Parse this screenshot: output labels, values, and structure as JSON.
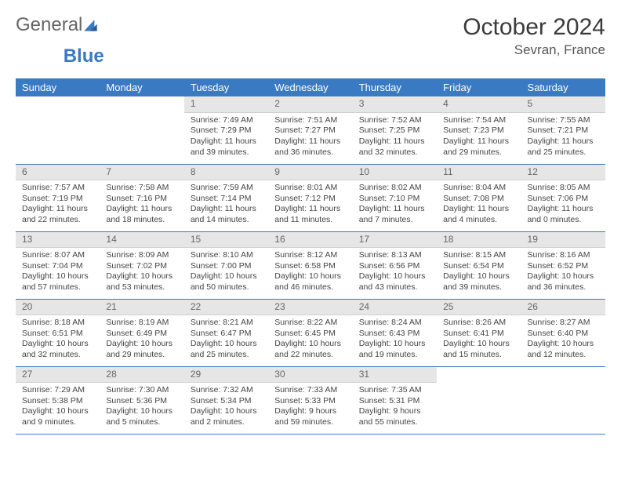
{
  "logo": {
    "text1": "General",
    "text2": "Blue",
    "accent_color": "#3a7ac2"
  },
  "header": {
    "title": "October 2024",
    "location": "Sevran, France"
  },
  "colors": {
    "header_bg": "#3a7ac2",
    "header_text": "#ffffff",
    "daynum_bg": "#e6e6e6",
    "daynum_text": "#666666",
    "cell_border": "#3a7ac2",
    "body_text": "#444444"
  },
  "weekdays": [
    "Sunday",
    "Monday",
    "Tuesday",
    "Wednesday",
    "Thursday",
    "Friday",
    "Saturday"
  ],
  "weeks": [
    [
      {
        "empty": true
      },
      {
        "empty": true
      },
      {
        "day": "1",
        "sunrise": "7:49 AM",
        "sunset": "7:29 PM",
        "daylight_h": 11,
        "daylight_m": 39
      },
      {
        "day": "2",
        "sunrise": "7:51 AM",
        "sunset": "7:27 PM",
        "daylight_h": 11,
        "daylight_m": 36
      },
      {
        "day": "3",
        "sunrise": "7:52 AM",
        "sunset": "7:25 PM",
        "daylight_h": 11,
        "daylight_m": 32
      },
      {
        "day": "4",
        "sunrise": "7:54 AM",
        "sunset": "7:23 PM",
        "daylight_h": 11,
        "daylight_m": 29
      },
      {
        "day": "5",
        "sunrise": "7:55 AM",
        "sunset": "7:21 PM",
        "daylight_h": 11,
        "daylight_m": 25
      }
    ],
    [
      {
        "day": "6",
        "sunrise": "7:57 AM",
        "sunset": "7:19 PM",
        "daylight_h": 11,
        "daylight_m": 22
      },
      {
        "day": "7",
        "sunrise": "7:58 AM",
        "sunset": "7:16 PM",
        "daylight_h": 11,
        "daylight_m": 18
      },
      {
        "day": "8",
        "sunrise": "7:59 AM",
        "sunset": "7:14 PM",
        "daylight_h": 11,
        "daylight_m": 14
      },
      {
        "day": "9",
        "sunrise": "8:01 AM",
        "sunset": "7:12 PM",
        "daylight_h": 11,
        "daylight_m": 11
      },
      {
        "day": "10",
        "sunrise": "8:02 AM",
        "sunset": "7:10 PM",
        "daylight_h": 11,
        "daylight_m": 7
      },
      {
        "day": "11",
        "sunrise": "8:04 AM",
        "sunset": "7:08 PM",
        "daylight_h": 11,
        "daylight_m": 4
      },
      {
        "day": "12",
        "sunrise": "8:05 AM",
        "sunset": "7:06 PM",
        "daylight_h": 11,
        "daylight_m": 0
      }
    ],
    [
      {
        "day": "13",
        "sunrise": "8:07 AM",
        "sunset": "7:04 PM",
        "daylight_h": 10,
        "daylight_m": 57
      },
      {
        "day": "14",
        "sunrise": "8:09 AM",
        "sunset": "7:02 PM",
        "daylight_h": 10,
        "daylight_m": 53
      },
      {
        "day": "15",
        "sunrise": "8:10 AM",
        "sunset": "7:00 PM",
        "daylight_h": 10,
        "daylight_m": 50
      },
      {
        "day": "16",
        "sunrise": "8:12 AM",
        "sunset": "6:58 PM",
        "daylight_h": 10,
        "daylight_m": 46
      },
      {
        "day": "17",
        "sunrise": "8:13 AM",
        "sunset": "6:56 PM",
        "daylight_h": 10,
        "daylight_m": 43
      },
      {
        "day": "18",
        "sunrise": "8:15 AM",
        "sunset": "6:54 PM",
        "daylight_h": 10,
        "daylight_m": 39
      },
      {
        "day": "19",
        "sunrise": "8:16 AM",
        "sunset": "6:52 PM",
        "daylight_h": 10,
        "daylight_m": 36
      }
    ],
    [
      {
        "day": "20",
        "sunrise": "8:18 AM",
        "sunset": "6:51 PM",
        "daylight_h": 10,
        "daylight_m": 32
      },
      {
        "day": "21",
        "sunrise": "8:19 AM",
        "sunset": "6:49 PM",
        "daylight_h": 10,
        "daylight_m": 29
      },
      {
        "day": "22",
        "sunrise": "8:21 AM",
        "sunset": "6:47 PM",
        "daylight_h": 10,
        "daylight_m": 25
      },
      {
        "day": "23",
        "sunrise": "8:22 AM",
        "sunset": "6:45 PM",
        "daylight_h": 10,
        "daylight_m": 22
      },
      {
        "day": "24",
        "sunrise": "8:24 AM",
        "sunset": "6:43 PM",
        "daylight_h": 10,
        "daylight_m": 19
      },
      {
        "day": "25",
        "sunrise": "8:26 AM",
        "sunset": "6:41 PM",
        "daylight_h": 10,
        "daylight_m": 15
      },
      {
        "day": "26",
        "sunrise": "8:27 AM",
        "sunset": "6:40 PM",
        "daylight_h": 10,
        "daylight_m": 12
      }
    ],
    [
      {
        "day": "27",
        "sunrise": "7:29 AM",
        "sunset": "5:38 PM",
        "daylight_h": 10,
        "daylight_m": 9
      },
      {
        "day": "28",
        "sunrise": "7:30 AM",
        "sunset": "5:36 PM",
        "daylight_h": 10,
        "daylight_m": 5
      },
      {
        "day": "29",
        "sunrise": "7:32 AM",
        "sunset": "5:34 PM",
        "daylight_h": 10,
        "daylight_m": 2
      },
      {
        "day": "30",
        "sunrise": "7:33 AM",
        "sunset": "5:33 PM",
        "daylight_h": 9,
        "daylight_m": 59
      },
      {
        "day": "31",
        "sunrise": "7:35 AM",
        "sunset": "5:31 PM",
        "daylight_h": 9,
        "daylight_m": 55
      },
      {
        "empty": true
      },
      {
        "empty": true
      }
    ]
  ],
  "labels": {
    "sunrise": "Sunrise:",
    "sunset": "Sunset:",
    "daylight": "Daylight:",
    "hours": "hours",
    "and": "and",
    "minutes": "minutes."
  }
}
